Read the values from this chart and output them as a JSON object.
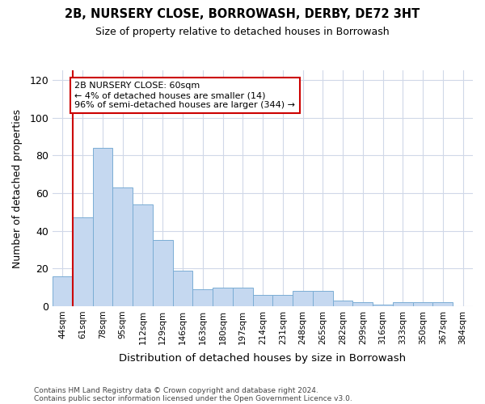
{
  "title1": "2B, NURSERY CLOSE, BORROWASH, DERBY, DE72 3HT",
  "title2": "Size of property relative to detached houses in Borrowash",
  "xlabel": "Distribution of detached houses by size in Borrowash",
  "ylabel": "Number of detached properties",
  "categories": [
    "44sqm",
    "61sqm",
    "78sqm",
    "95sqm",
    "112sqm",
    "129sqm",
    "146sqm",
    "163sqm",
    "180sqm",
    "197sqm",
    "214sqm",
    "231sqm",
    "248sqm",
    "265sqm",
    "282sqm",
    "299sqm",
    "316sqm",
    "333sqm",
    "350sqm",
    "367sqm",
    "384sqm"
  ],
  "values": [
    16,
    47,
    84,
    63,
    54,
    35,
    19,
    9,
    10,
    10,
    6,
    6,
    8,
    8,
    3,
    2,
    1,
    2,
    2,
    2,
    0
  ],
  "bar_color": "#c5d8f0",
  "bar_edge_color": "#7aadd4",
  "vline_color": "#cc0000",
  "annotation_text": "2B NURSERY CLOSE: 60sqm\n← 4% of detached houses are smaller (14)\n96% of semi-detached houses are larger (344) →",
  "annotation_box_facecolor": "#ffffff",
  "annotation_box_edgecolor": "#cc0000",
  "ylim": [
    0,
    125
  ],
  "yticks": [
    0,
    20,
    40,
    60,
    80,
    100,
    120
  ],
  "footer1": "Contains HM Land Registry data © Crown copyright and database right 2024.",
  "footer2": "Contains public sector information licensed under the Open Government Licence v3.0.",
  "bg_color": "#ffffff",
  "plot_bg_color": "#ffffff",
  "grid_color": "#d0d8e8"
}
